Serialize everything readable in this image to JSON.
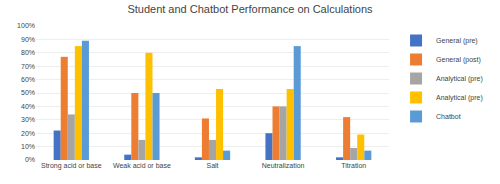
{
  "chart_data": {
    "type": "bar",
    "title": "Student and Chatbot Performance on Calculations",
    "categories": [
      "Strong acid or base",
      "Weak acid or base",
      "Salt",
      "Neutralization",
      "Titration"
    ],
    "series": [
      {
        "name": "General (pre)",
        "color": "#4472C4",
        "values": [
          0.22,
          0.04,
          0.02,
          0.2,
          0.02
        ]
      },
      {
        "name": "General (post)",
        "color": "#ED7D31",
        "values": [
          0.77,
          0.5,
          0.31,
          0.4,
          0.32
        ]
      },
      {
        "name": "Analytical (pre)",
        "color": "#A5A5A5",
        "values": [
          0.34,
          0.15,
          0.15,
          0.4,
          0.09
        ]
      },
      {
        "name": "Analytical (pre)",
        "color": "#FFC000",
        "values": [
          0.85,
          0.8,
          0.53,
          0.53,
          0.19
        ]
      },
      {
        "name": "Chatbot",
        "color": "#5B9BD5",
        "values": [
          0.89,
          0.5,
          0.07,
          0.85,
          0.07
        ]
      }
    ],
    "ylim": [
      0,
      1.0
    ],
    "yticks": [
      {
        "value": 0,
        "label": "0%"
      },
      {
        "value": 0.1,
        "label": "10%"
      },
      {
        "value": 0.2,
        "label": "20%"
      },
      {
        "value": 0.3,
        "label": "30%"
      },
      {
        "value": 0.4,
        "label": "40%"
      },
      {
        "value": 0.5,
        "label": "50%"
      },
      {
        "value": 0.6,
        "label": "60%"
      },
      {
        "value": 0.7,
        "label": "70%"
      },
      {
        "value": 0.8,
        "label": "80%"
      },
      {
        "value": 0.9,
        "label": "90%"
      },
      {
        "value": 1.0,
        "label": "100%"
      }
    ],
    "grid": true,
    "legend": "right"
  }
}
